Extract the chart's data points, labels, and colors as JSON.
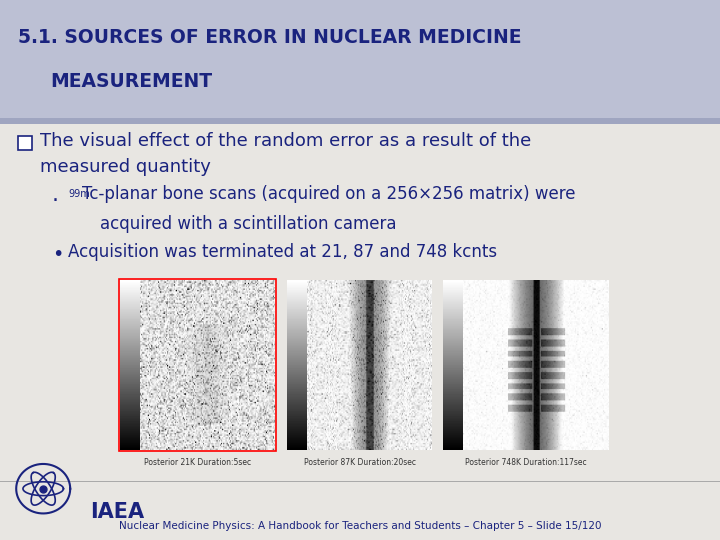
{
  "title_line1": "5.1. SOURCES OF ERROR IN NUCLEAR MEDICINE",
  "title_line2": "MEASUREMENT",
  "title_bg_color": "#bcc0d4",
  "title_text_color": "#1a237e",
  "body_bg_color": "#edeef2",
  "body_bg_lower": "#e8e4e0",
  "bullet1_text_line1": "The visual effect of the random error as a result of the",
  "bullet1_text_line2": "measured quantity",
  "sub_bullet1_sup": "99m",
  "sub_bullet1_line1": "Tc-planar bone scans (acquired on a 256×256 matrix) were",
  "sub_bullet1_line2": "acquired with a scintillation camera",
  "sub_bullet2": "Acquisition was terminated at 21, 87 and 748 kcnts",
  "footer_text": "Nuclear Medicine Physics: A Handbook for Teachers and Students – Chapter 5 – Slide 15/120",
  "iaea_text": "IAEA",
  "text_color": "#1a237e",
  "footer_text_color": "#1a237e",
  "title_fontsize": 13.5,
  "body_fontsize": 13,
  "sub_fontsize": 12,
  "footer_fontsize": 7.5,
  "iaea_fontsize": 15
}
